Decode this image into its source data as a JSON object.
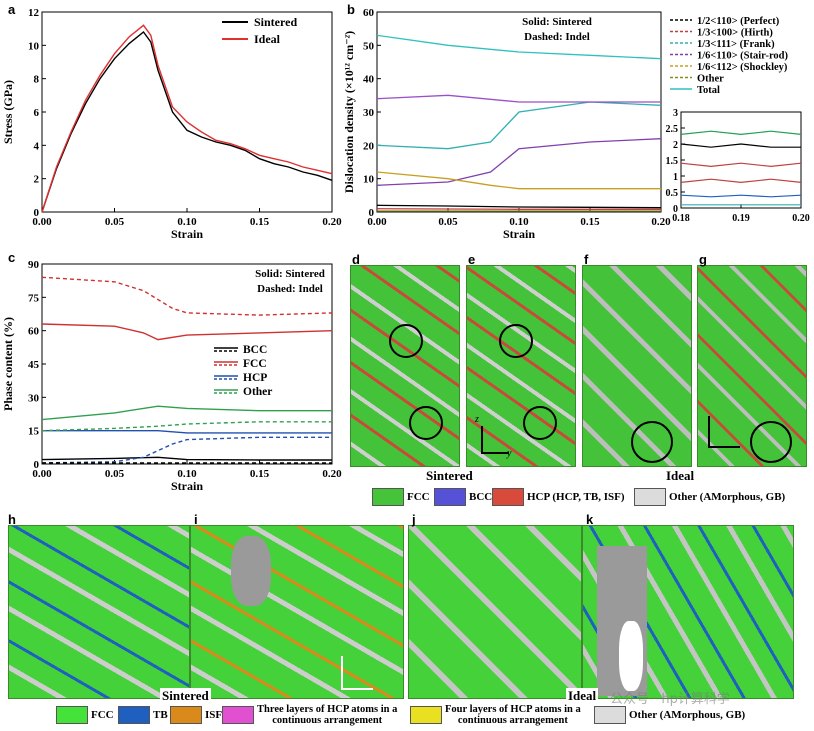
{
  "panels": {
    "a": {
      "letter": "a"
    },
    "b": {
      "letter": "b"
    },
    "c": {
      "letter": "c"
    },
    "d": {
      "letter": "d"
    },
    "e": {
      "letter": "e"
    },
    "f": {
      "letter": "f"
    },
    "g": {
      "letter": "g"
    },
    "h": {
      "letter": "h"
    },
    "i": {
      "letter": "i"
    },
    "j": {
      "letter": "j"
    },
    "k": {
      "letter": "k"
    }
  },
  "captions": {
    "sintered_top": "Sintered",
    "ideal_top": "Ideal",
    "sintered_bottom": "Sintered",
    "ideal_bottom": "Ideal",
    "axis_z": "z",
    "axis_y": "y",
    "axis_x": "x"
  },
  "legend_top": [
    {
      "label": "FCC",
      "color": "#45c43a"
    },
    {
      "label": "BCC",
      "color": "#5552d8"
    },
    {
      "label": "HCP (HCP, TB, ISF)",
      "color": "#d84a3c"
    },
    {
      "label": "Other (AMorphous, GB)",
      "color": "#dcdcdc"
    }
  ],
  "legend_bottom": [
    {
      "label": "FCC",
      "color": "#45e33a"
    },
    {
      "label": "TB",
      "color": "#1f5fbf"
    },
    {
      "label": "ISF",
      "color": "#d98a1a"
    },
    {
      "label": "Three layers of HCP atoms in a continuous arrangement",
      "line1": "Three layers of HCP atoms in a",
      "line2": "continuous arrangement",
      "color": "#e050d0"
    },
    {
      "label": "Four layers of HCP atoms in a continuous arrangement",
      "line1": "Four layers of HCP atoms in a",
      "line2": "continuous arrangement",
      "color": "#e8e020"
    },
    {
      "label": "Other (AMorphous, GB)",
      "color": "#dcdcdc"
    }
  ],
  "watermark": "公众号 · hp计算科学",
  "chart_data": [
    {
      "id": "a",
      "type": "line",
      "xlabel": "Strain",
      "ylabel": "Stress (GPa)",
      "xlim": [
        0,
        0.2
      ],
      "ylim": [
        0,
        12
      ],
      "xticks": [
        "0.00",
        "0.05",
        "0.10",
        "0.15",
        "0.20"
      ],
      "yticks": [
        "0",
        "2",
        "4",
        "6",
        "8",
        "10",
        "12"
      ],
      "legend_position": "top-right",
      "series": [
        {
          "name": "Sintered",
          "color": "#000000",
          "x": [
            0,
            0.01,
            0.02,
            0.03,
            0.04,
            0.05,
            0.06,
            0.07,
            0.075,
            0.08,
            0.09,
            0.1,
            0.11,
            0.12,
            0.13,
            0.14,
            0.15,
            0.16,
            0.17,
            0.18,
            0.19,
            0.2
          ],
          "y": [
            0,
            2.6,
            4.7,
            6.5,
            8.0,
            9.2,
            10.1,
            10.8,
            10.2,
            8.5,
            6.0,
            4.9,
            4.5,
            4.2,
            4.0,
            3.7,
            3.2,
            2.9,
            2.7,
            2.4,
            2.2,
            1.9
          ]
        },
        {
          "name": "Ideal",
          "color": "#e03030",
          "x": [
            0,
            0.01,
            0.02,
            0.03,
            0.04,
            0.05,
            0.06,
            0.07,
            0.075,
            0.08,
            0.09,
            0.1,
            0.11,
            0.12,
            0.13,
            0.14,
            0.15,
            0.16,
            0.17,
            0.18,
            0.19,
            0.2
          ],
          "y": [
            0,
            2.7,
            4.8,
            6.7,
            8.2,
            9.5,
            10.5,
            11.2,
            10.6,
            8.8,
            6.3,
            5.4,
            4.8,
            4.3,
            4.1,
            3.8,
            3.4,
            3.2,
            3.0,
            2.7,
            2.5,
            2.3
          ]
        }
      ]
    },
    {
      "id": "b",
      "type": "line",
      "xlabel": "Strain",
      "ylabel": "Dislocation density (×10¹² cm⁻²)",
      "xlim": [
        0,
        0.2
      ],
      "ylim": [
        0,
        60
      ],
      "xticks": [
        "0.00",
        "0.05",
        "0.10",
        "0.15",
        "0.20"
      ],
      "yticks": [
        "0",
        "10",
        "20",
        "30",
        "40",
        "50",
        "60"
      ],
      "annotation": [
        "Solid: Sintered",
        "Dashed: Indel"
      ],
      "legend_position": "top-right",
      "series": [
        {
          "name": "1/2<110> (Perfect)",
          "color": "#000000",
          "x": [
            0,
            0.05,
            0.1,
            0.15,
            0.2
          ],
          "y": [
            2.0,
            1.8,
            1.5,
            1.4,
            1.3
          ]
        },
        {
          "name": "1/3<100> (Hirth)",
          "color": "#c04040",
          "x": [
            0,
            0.05,
            0.1,
            0.15,
            0.2
          ],
          "y": [
            1.0,
            0.9,
            0.8,
            0.8,
            0.8
          ]
        },
        {
          "name": "1/3<111> (Frank)",
          "color": "#30b0b0",
          "x": [
            0,
            0.05,
            0.08,
            0.1,
            0.15,
            0.2
          ],
          "y": [
            20,
            19,
            21,
            30,
            33,
            32
          ]
        },
        {
          "name": "1/6<110> (Stair-rod)",
          "color": "#8040b0",
          "x": [
            0,
            0.05,
            0.08,
            0.1,
            0.15,
            0.2
          ],
          "y": [
            8,
            9,
            12,
            19,
            21,
            22
          ]
        },
        {
          "name": "1/6<112> (Shockley)",
          "color": "#c8a020",
          "x": [
            0,
            0.05,
            0.08,
            0.1,
            0.15,
            0.2
          ],
          "y": [
            12,
            10,
            8,
            7,
            7,
            7
          ]
        },
        {
          "name": "Other",
          "color": "#8a8a20",
          "x": [
            0,
            0.05,
            0.1,
            0.15,
            0.2
          ],
          "y": [
            0.3,
            0.3,
            0.3,
            0.3,
            0.3
          ]
        },
        {
          "name": "Total",
          "color": "#30c0c0",
          "x": [
            0,
            0.05,
            0.1,
            0.15,
            0.2
          ],
          "y": [
            53,
            50,
            48,
            47,
            46
          ]
        }
      ],
      "extra_series": [
        {
          "color": "#9a50c8",
          "x": [
            0,
            0.05,
            0.1,
            0.15,
            0.2
          ],
          "y": [
            34,
            35,
            33,
            33,
            33
          ]
        }
      ],
      "inset": {
        "xlim": [
          0.18,
          0.2
        ],
        "ylim": [
          0,
          3
        ],
        "xticks": [
          "0.18",
          "0.19",
          "0.20"
        ],
        "yticks": [
          "0",
          "0.5",
          "1",
          "1.5",
          "2",
          "2.5",
          "3"
        ],
        "series": [
          {
            "color": "#20a050",
            "x": [
              0.18,
              0.185,
              0.19,
              0.195,
              0.2
            ],
            "y": [
              2.3,
              2.4,
              2.3,
              2.4,
              2.3
            ]
          },
          {
            "color": "#000000",
            "x": [
              0.18,
              0.185,
              0.19,
              0.195,
              0.2
            ],
            "y": [
              2.0,
              1.9,
              2.0,
              1.9,
              1.9
            ]
          },
          {
            "color": "#c04040",
            "x": [
              0.18,
              0.185,
              0.19,
              0.195,
              0.2
            ],
            "y": [
              1.4,
              1.3,
              1.4,
              1.3,
              1.4
            ]
          },
          {
            "color": "#c04040",
            "x": [
              0.18,
              0.185,
              0.19,
              0.195,
              0.2
            ],
            "y": [
              0.8,
              0.9,
              0.8,
              0.9,
              0.8
            ]
          },
          {
            "color": "#2060c0",
            "x": [
              0.18,
              0.185,
              0.19,
              0.195,
              0.2
            ],
            "y": [
              0.4,
              0.35,
              0.4,
              0.35,
              0.4
            ]
          },
          {
            "color": "#30b0b0",
            "x": [
              0.18,
              0.185,
              0.19,
              0.195,
              0.2
            ],
            "y": [
              0.1,
              0.1,
              0.1,
              0.1,
              0.1
            ]
          }
        ]
      }
    },
    {
      "id": "c",
      "type": "line",
      "xlabel": "Strain",
      "ylabel": "Phase content (%)",
      "xlim": [
        0,
        0.2
      ],
      "ylim": [
        0,
        90
      ],
      "xticks": [
        "0.00",
        "0.05",
        "0.10",
        "0.15",
        "0.20"
      ],
      "yticks": [
        "0",
        "15",
        "30",
        "45",
        "60",
        "75",
        "90"
      ],
      "annotation": [
        "Solid: Sintered",
        "Dashed: Indel"
      ],
      "legend_position": "center-left",
      "series": [
        {
          "name": "BCC",
          "color": "#000000",
          "x": [
            0,
            0.05,
            0.08,
            0.1,
            0.15,
            0.2
          ],
          "y": [
            2,
            2.5,
            3,
            2,
            1.8,
            1.8
          ]
        },
        {
          "name": "FCC",
          "color": "#d03030",
          "x": [
            0,
            0.05,
            0.07,
            0.08,
            0.1,
            0.15,
            0.2
          ],
          "y": [
            63,
            62,
            59,
            56,
            58,
            59,
            60
          ]
        },
        {
          "name": "HCP",
          "color": "#2050b0",
          "x": [
            0,
            0.05,
            0.08,
            0.1,
            0.15,
            0.2
          ],
          "y": [
            15,
            15,
            15,
            14,
            14,
            14
          ]
        },
        {
          "name": "Other",
          "color": "#30a050",
          "x": [
            0,
            0.05,
            0.08,
            0.1,
            0.15,
            0.2
          ],
          "y": [
            20,
            23,
            26,
            25,
            24,
            24
          ]
        }
      ],
      "dashed_series": [
        {
          "color": "#d03030",
          "x": [
            0,
            0.05,
            0.07,
            0.09,
            0.1,
            0.15,
            0.2
          ],
          "y": [
            84,
            82,
            78,
            70,
            68,
            67,
            68
          ]
        },
        {
          "color": "#30a050",
          "x": [
            0,
            0.05,
            0.08,
            0.1,
            0.15,
            0.2
          ],
          "y": [
            15,
            16,
            17,
            18,
            19,
            19
          ]
        },
        {
          "color": "#2050b0",
          "x": [
            0,
            0.05,
            0.07,
            0.09,
            0.1,
            0.15,
            0.2
          ],
          "y": [
            0.5,
            1,
            3,
            9,
            11,
            12,
            12
          ]
        },
        {
          "color": "#000000",
          "x": [
            0,
            0.05,
            0.1,
            0.15,
            0.2
          ],
          "y": [
            0.5,
            0.5,
            0.5,
            0.5,
            0.5
          ]
        }
      ]
    }
  ]
}
